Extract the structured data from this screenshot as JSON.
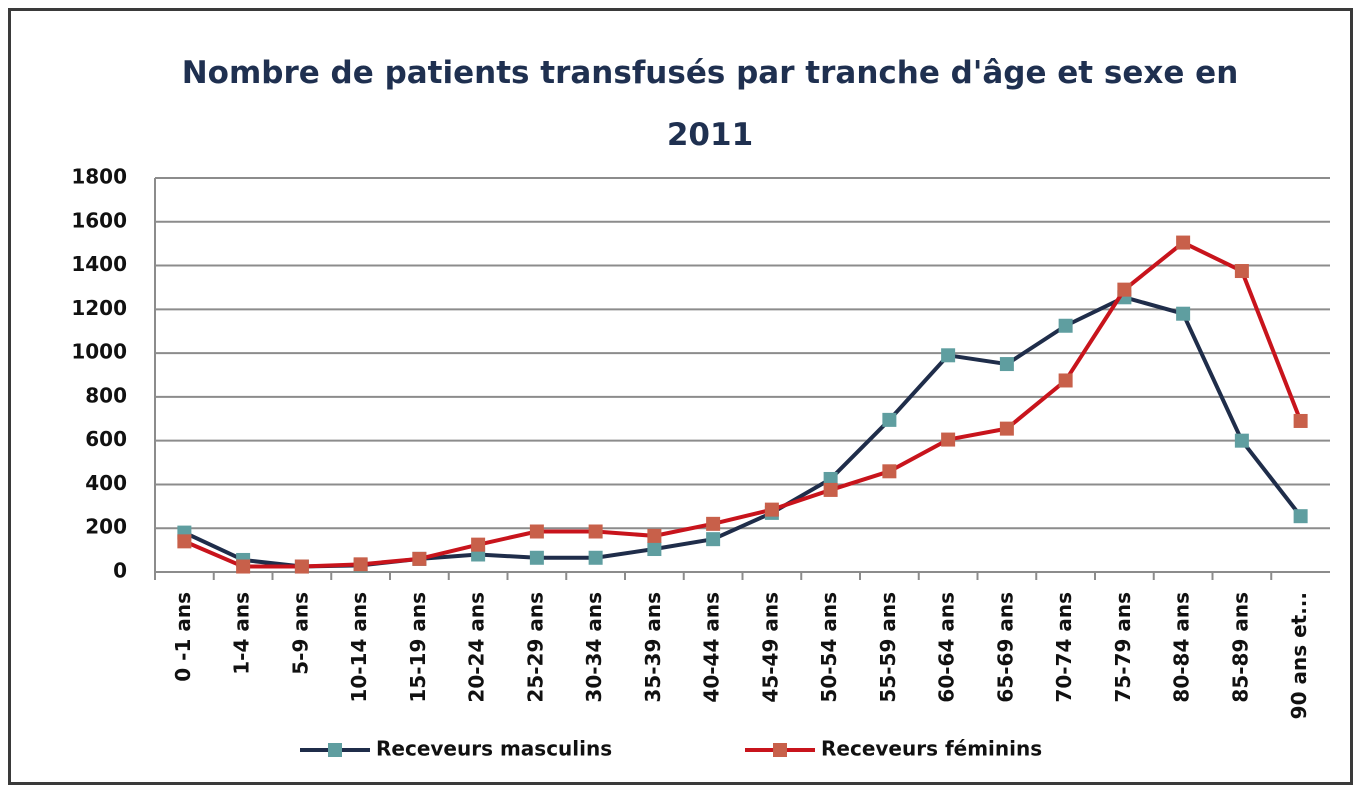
{
  "chart_data": {
    "type": "line",
    "title": "Nombre de patients transfusés par tranche d'âge et sexe en 2011",
    "categories": [
      "0 -1 ans",
      "1-4 ans",
      "5-9 ans",
      "10-14 ans",
      "15-19 ans",
      "20-24 ans",
      "25-29 ans",
      "30-34 ans",
      "35-39 ans",
      "40-44 ans",
      "45-49 ans",
      "50-54 ans",
      "55-59 ans",
      "60-64 ans",
      "65-69 ans",
      "70-74 ans",
      "75-79 ans",
      "80-84 ans",
      "85-89 ans",
      "90 ans et..."
    ],
    "series": [
      {
        "name": "Receveurs masculins",
        "color": "#1f2d4a",
        "marker_color": "#5f9ea0",
        "values": [
          180,
          55,
          25,
          30,
          60,
          80,
          65,
          65,
          105,
          150,
          270,
          425,
          695,
          990,
          950,
          1125,
          1255,
          1180,
          600,
          255
        ]
      },
      {
        "name": "Receveurs féminins",
        "color": "#c8141c",
        "marker_color": "#c8604a",
        "values": [
          140,
          25,
          25,
          35,
          60,
          125,
          185,
          185,
          165,
          220,
          285,
          375,
          460,
          605,
          655,
          875,
          1290,
          1505,
          1375,
          690
        ]
      }
    ],
    "ylim": [
      0,
      1800
    ],
    "yticks": [
      0,
      200,
      400,
      600,
      800,
      1000,
      1200,
      1400,
      1600,
      1800
    ],
    "grid": true,
    "legend": "bottom"
  }
}
